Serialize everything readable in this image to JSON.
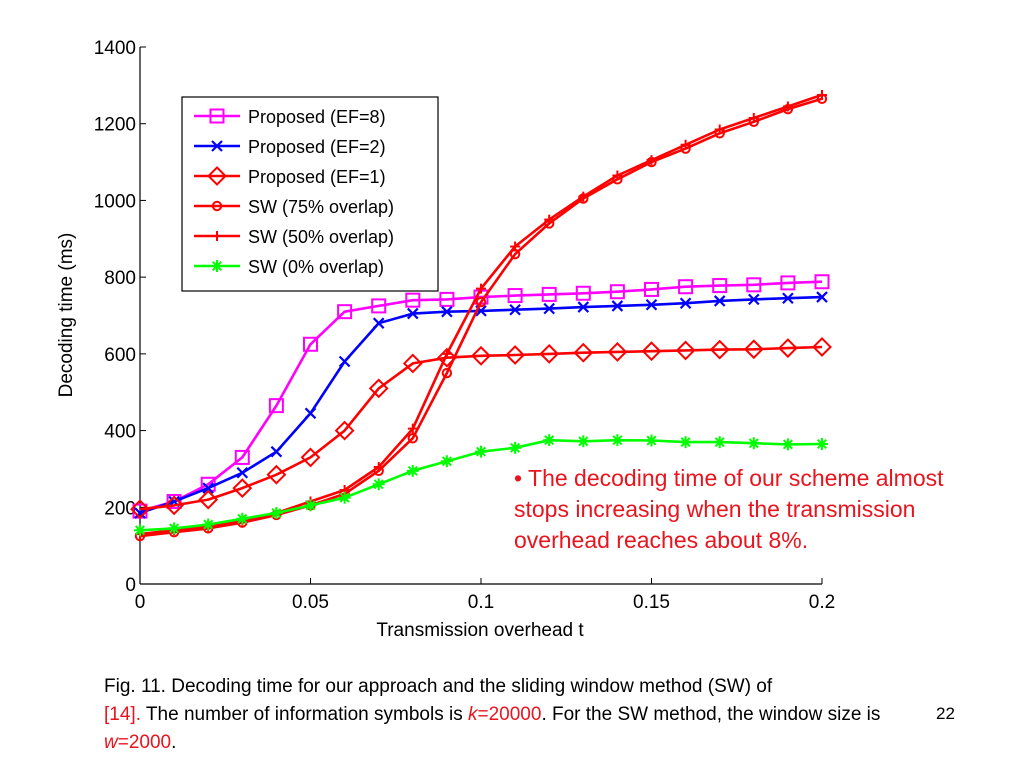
{
  "chart_data": {
    "type": "line",
    "xlabel": "Transmission overhead t",
    "ylabel": "Decoding time (ms)",
    "xlim": [
      0,
      0.2
    ],
    "ylim": [
      0,
      1400
    ],
    "xticks": [
      0,
      0.05,
      0.1,
      0.15,
      0.2
    ],
    "xtick_labels": [
      "0",
      "0.05",
      "0.1",
      "0.15",
      "0.2"
    ],
    "yticks": [
      0,
      200,
      400,
      600,
      800,
      1000,
      1200,
      1400
    ],
    "ytick_labels": [
      "0",
      "200",
      "400",
      "600",
      "800",
      "1000",
      "1200",
      "1400"
    ],
    "grid": false,
    "legend_position": "top-left",
    "x": [
      0,
      0.01,
      0.02,
      0.03,
      0.04,
      0.05,
      0.06,
      0.07,
      0.08,
      0.09,
      0.1,
      0.11,
      0.12,
      0.13,
      0.14,
      0.15,
      0.16,
      0.17,
      0.18,
      0.19,
      0.2
    ],
    "series": [
      {
        "name": "Proposed (EF=8)",
        "color": "#ff00ff",
        "marker": "square",
        "values": [
          190,
          215,
          260,
          330,
          465,
          625,
          710,
          725,
          740,
          742,
          748,
          752,
          755,
          758,
          762,
          768,
          775,
          778,
          780,
          785,
          788
        ]
      },
      {
        "name": "Proposed (EF=2)",
        "color": "#0000ff",
        "marker": "x",
        "values": [
          185,
          215,
          250,
          290,
          345,
          445,
          580,
          680,
          705,
          710,
          712,
          715,
          718,
          722,
          725,
          728,
          732,
          738,
          742,
          745,
          748
        ]
      },
      {
        "name": "Proposed (EF=1)",
        "color": "#ff0000",
        "marker": "diamond",
        "values": [
          195,
          205,
          220,
          250,
          285,
          330,
          400,
          510,
          575,
          590,
          595,
          597,
          600,
          603,
          605,
          607,
          609,
          611,
          612,
          615,
          618
        ]
      },
      {
        "name": "SW (75% overlap)",
        "color": "#ff0000",
        "marker": "circle",
        "values": [
          125,
          135,
          145,
          160,
          180,
          205,
          235,
          295,
          380,
          550,
          735,
          860,
          940,
          1005,
          1055,
          1100,
          1135,
          1175,
          1205,
          1238,
          1265
        ]
      },
      {
        "name": "SW (50% overlap)",
        "color": "#ff0000",
        "marker": "plus",
        "values": [
          130,
          140,
          150,
          165,
          185,
          215,
          245,
          305,
          405,
          600,
          770,
          880,
          950,
          1010,
          1065,
          1105,
          1145,
          1185,
          1215,
          1245,
          1275
        ]
      },
      {
        "name": "SW (0% overlap)",
        "color": "#00ff00",
        "marker": "star",
        "values": [
          140,
          145,
          155,
          170,
          185,
          205,
          225,
          260,
          295,
          320,
          345,
          355,
          375,
          372,
          375,
          374,
          370,
          370,
          367,
          364,
          365
        ]
      }
    ]
  },
  "annotation": {
    "line1": "• The decoding time of our scheme almost",
    "line2": "stops increasing when the transmission",
    "line3": "overhead reaches about 8%."
  },
  "caption": {
    "part1": "Fig. 11. Decoding time for our approach and the sliding window method (SW) of",
    "ref": "[14].",
    "part2": " The number of information symbols is ",
    "k_var": "k",
    "k_value": "=20000",
    "part3": ". For the SW method, the window size is ",
    "w_var": "w",
    "w_value": "=2000",
    "part4": "."
  },
  "page_number": "22"
}
